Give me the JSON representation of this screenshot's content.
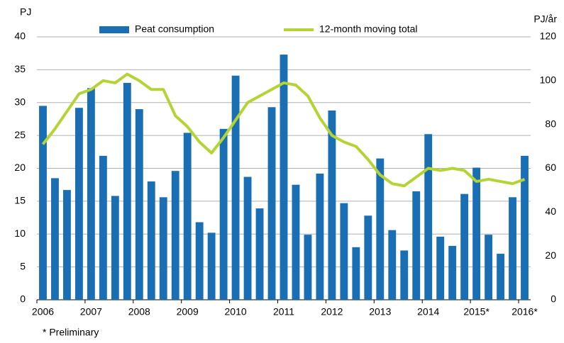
{
  "chart_data": {
    "type": "bar",
    "y_label": "PJ",
    "y2_label": "PJ/år",
    "footnote": "* Preliminary",
    "categories": [
      "2006",
      null,
      null,
      null,
      "2007",
      null,
      null,
      null,
      "2008",
      null,
      null,
      null,
      "2009",
      null,
      null,
      null,
      "2010",
      null,
      null,
      null,
      "2011",
      null,
      null,
      null,
      "2012",
      null,
      null,
      null,
      "2013",
      null,
      null,
      null,
      "2014",
      null,
      null,
      null,
      "2015*",
      null,
      null,
      null,
      "2016*"
    ],
    "series": [
      {
        "name": "Peat consumption",
        "color": "#1a6fb4",
        "type": "bar",
        "values": [
          29.5,
          18.5,
          16.7,
          29.2,
          32.2,
          21.9,
          15.8,
          33.0,
          29.0,
          18.0,
          15.6,
          19.6,
          25.4,
          11.8,
          10.2,
          26.0,
          34.1,
          18.7,
          13.9,
          29.3,
          37.3,
          17.5,
          9.9,
          19.2,
          28.8,
          14.7,
          8.0,
          12.8,
          21.5,
          10.6,
          7.5,
          16.5,
          25.2,
          9.6,
          8.2,
          16.1,
          20.1,
          9.9,
          7.0,
          15.6,
          21.9
        ]
      },
      {
        "name": "12-month moving total",
        "color": "#b4d334",
        "type": "line",
        "axis": "y2",
        "values": [
          71,
          78,
          86,
          94,
          96,
          100,
          99,
          103,
          100,
          96,
          96,
          84,
          79,
          72,
          67,
          74,
          82,
          90,
          93,
          96,
          99,
          98,
          93,
          83,
          75,
          72,
          70,
          64,
          57,
          53,
          52,
          56,
          60,
          59,
          60,
          59,
          54,
          55,
          54,
          53,
          55
        ]
      }
    ],
    "ylim": [
      0,
      40
    ],
    "yticks": [
      0,
      5,
      10,
      15,
      20,
      25,
      30,
      35,
      40
    ],
    "y2lim": [
      0,
      120
    ],
    "y2ticks": [
      0,
      20,
      40,
      60,
      80,
      100,
      120
    ],
    "grid": true
  }
}
